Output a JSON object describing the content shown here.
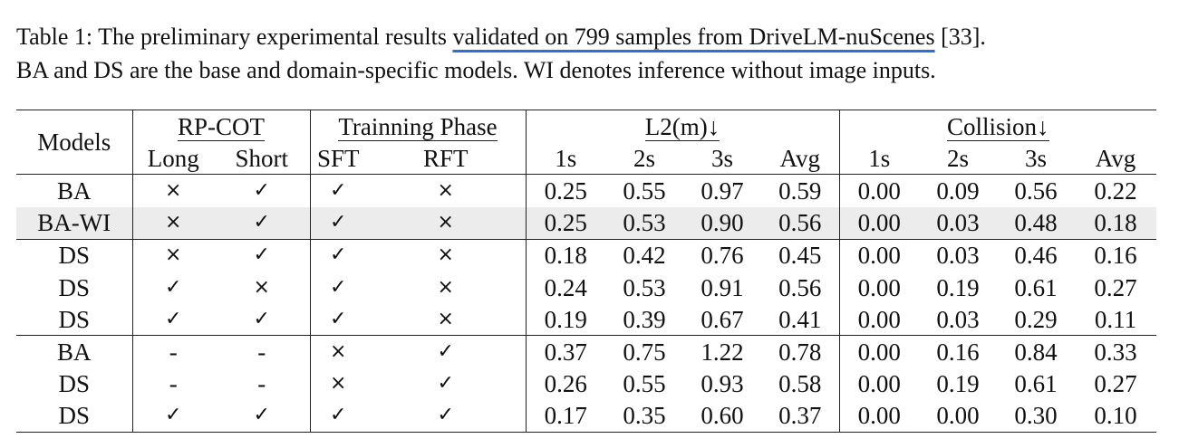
{
  "caption": {
    "prefix": "Table 1: The preliminary experimental results ",
    "underlined": "validated on 799 samples from DriveLM-nuScenes",
    "suffix": " [33].",
    "line2": "BA and DS are the base and domain-specific models. WI denotes inference without image inputs."
  },
  "table": {
    "header": {
      "models": "Models",
      "rp_cot": "RP-COT",
      "training_phase": "Trainning Phase",
      "l2": "L2(m)↓",
      "collision": "Collision↓",
      "long": "Long",
      "short": "Short",
      "sft": "SFT",
      "rft": "RFT",
      "horizons": [
        "1s",
        "2s",
        "3s",
        "Avg"
      ]
    },
    "rows": [
      {
        "model": "BA",
        "long": "×",
        "short": "✓",
        "sft": "✓",
        "rft": "×",
        "l2": [
          "0.25",
          "0.55",
          "0.97",
          "0.59"
        ],
        "collision": [
          "0.00",
          "0.09",
          "0.56",
          "0.22"
        ]
      },
      {
        "model": "BA-WI",
        "long": "×",
        "short": "✓",
        "sft": "✓",
        "rft": "×",
        "l2": [
          "0.25",
          "0.53",
          "0.90",
          "0.56"
        ],
        "collision": [
          "0.00",
          "0.03",
          "0.48",
          "0.18"
        ]
      },
      {
        "model": "DS",
        "long": "×",
        "short": "✓",
        "sft": "✓",
        "rft": "×",
        "l2": [
          "0.18",
          "0.42",
          "0.76",
          "0.45"
        ],
        "collision": [
          "0.00",
          "0.03",
          "0.46",
          "0.16"
        ]
      },
      {
        "model": "DS",
        "long": "✓",
        "short": "×",
        "sft": "✓",
        "rft": "×",
        "l2": [
          "0.24",
          "0.53",
          "0.91",
          "0.56"
        ],
        "collision": [
          "0.00",
          "0.19",
          "0.61",
          "0.27"
        ]
      },
      {
        "model": "DS",
        "long": "✓",
        "short": "✓",
        "sft": "✓",
        "rft": "×",
        "l2": [
          "0.19",
          "0.39",
          "0.67",
          "0.41"
        ],
        "collision": [
          "0.00",
          "0.03",
          "0.29",
          "0.11"
        ]
      },
      {
        "model": "BA",
        "long": "-",
        "short": "-",
        "sft": "×",
        "rft": "✓",
        "l2": [
          "0.37",
          "0.75",
          "1.22",
          "0.78"
        ],
        "collision": [
          "0.00",
          "0.16",
          "0.84",
          "0.33"
        ]
      },
      {
        "model": "DS",
        "long": "-",
        "short": "-",
        "sft": "×",
        "rft": "✓",
        "l2": [
          "0.26",
          "0.55",
          "0.93",
          "0.58"
        ],
        "collision": [
          "0.00",
          "0.19",
          "0.61",
          "0.27"
        ]
      },
      {
        "model": "DS",
        "long": "✓",
        "short": "✓",
        "sft": "✓",
        "rft": "✓",
        "l2": [
          "0.17",
          "0.35",
          "0.60",
          "0.37"
        ],
        "collision": [
          "0.00",
          "0.00",
          "0.30",
          "0.10"
        ]
      }
    ]
  },
  "colors": {
    "underline": "#2e6fd6",
    "shaded_row": "#ececec"
  }
}
